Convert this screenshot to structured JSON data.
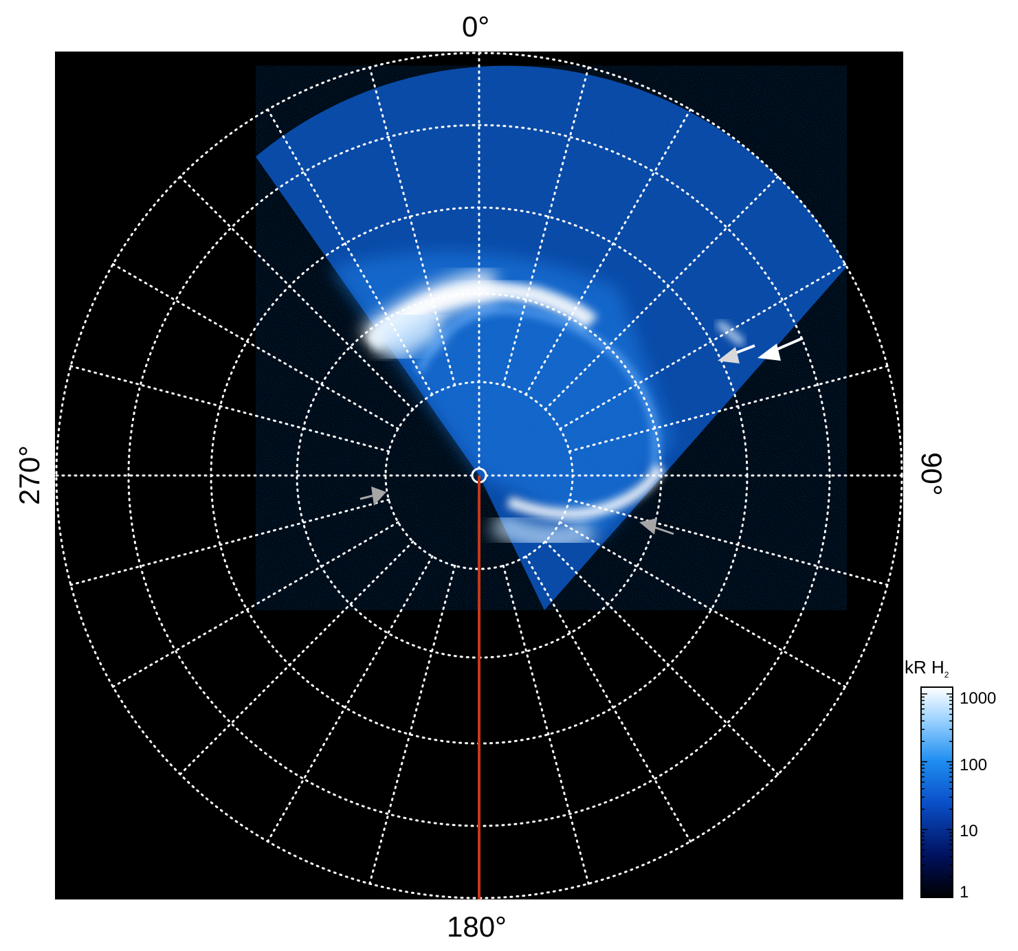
{
  "figure": {
    "direction_labels": {
      "top": "0°",
      "right": "90°",
      "bottom": "180°",
      "left": "270°"
    },
    "colorbar": {
      "title": "kR H",
      "title_subscript": "2",
      "scale": "log",
      "ticks": [
        "1000",
        "100",
        "10",
        "1"
      ],
      "colors": [
        "#000000",
        "#00115e",
        "#0a4fc8",
        "#1f8ef0",
        "#9fd4ff",
        "#ffffff"
      ]
    },
    "background_color": "#000000",
    "grid_color": "#ffffff",
    "meridian_line_color": "#c8381a",
    "arrow_colors": {
      "white": "#ffffff",
      "gray": "#a6a6a6"
    }
  }
}
